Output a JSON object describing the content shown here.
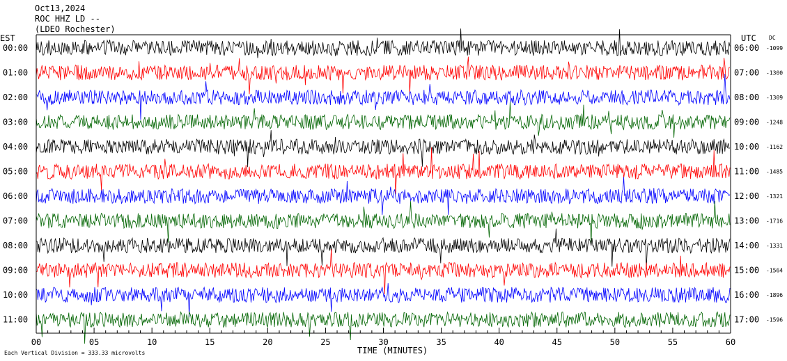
{
  "header": {
    "date": "Oct13,2024",
    "station": "ROC HHZ LD --",
    "location": "(LDEO Rochester)"
  },
  "left_timezone": "EST",
  "right_timezone": "UTC",
  "dc_label": "DC",
  "footer_note": "Each Vertical Division =  333.33 microvolts",
  "colors": {
    "black": "#000000",
    "red": "#ff0000",
    "blue": "#0000ff",
    "green": "#006400"
  },
  "chart_data": {
    "type": "line",
    "title": "",
    "xlabel": "TIME (MINUTES)",
    "ylabel": "",
    "xlim": [
      0,
      60
    ],
    "x_ticks": [
      "00",
      "05",
      "10",
      "15",
      "20",
      "25",
      "30",
      "35",
      "40",
      "45",
      "50",
      "55",
      "60"
    ],
    "series": [
      {
        "left_label": "00:00",
        "right_label": "06:00",
        "dc": "-1099",
        "color": "black"
      },
      {
        "left_label": "01:00",
        "right_label": "07:00",
        "dc": "-1300",
        "color": "red"
      },
      {
        "left_label": "02:00",
        "right_label": "08:00",
        "dc": "-1309",
        "color": "blue"
      },
      {
        "left_label": "03:00",
        "right_label": "09:00",
        "dc": "-1248",
        "color": "green"
      },
      {
        "left_label": "04:00",
        "right_label": "10:00",
        "dc": "-1162",
        "color": "black"
      },
      {
        "left_label": "05:00",
        "right_label": "11:00",
        "dc": "-1485",
        "color": "red"
      },
      {
        "left_label": "06:00",
        "right_label": "12:00",
        "dc": "-1321",
        "color": "blue"
      },
      {
        "left_label": "07:00",
        "right_label": "13:00",
        "dc": "-1716",
        "color": "green"
      },
      {
        "left_label": "08:00",
        "right_label": "14:00",
        "dc": "-1331",
        "color": "black"
      },
      {
        "left_label": "09:00",
        "right_label": "15:00",
        "dc": "-1564",
        "color": "red"
      },
      {
        "left_label": "10:00",
        "right_label": "16:00",
        "dc": "-1896",
        "color": "blue"
      },
      {
        "left_label": "11:00",
        "right_label": "17:00",
        "dc": "-1596",
        "color": "green"
      }
    ]
  }
}
